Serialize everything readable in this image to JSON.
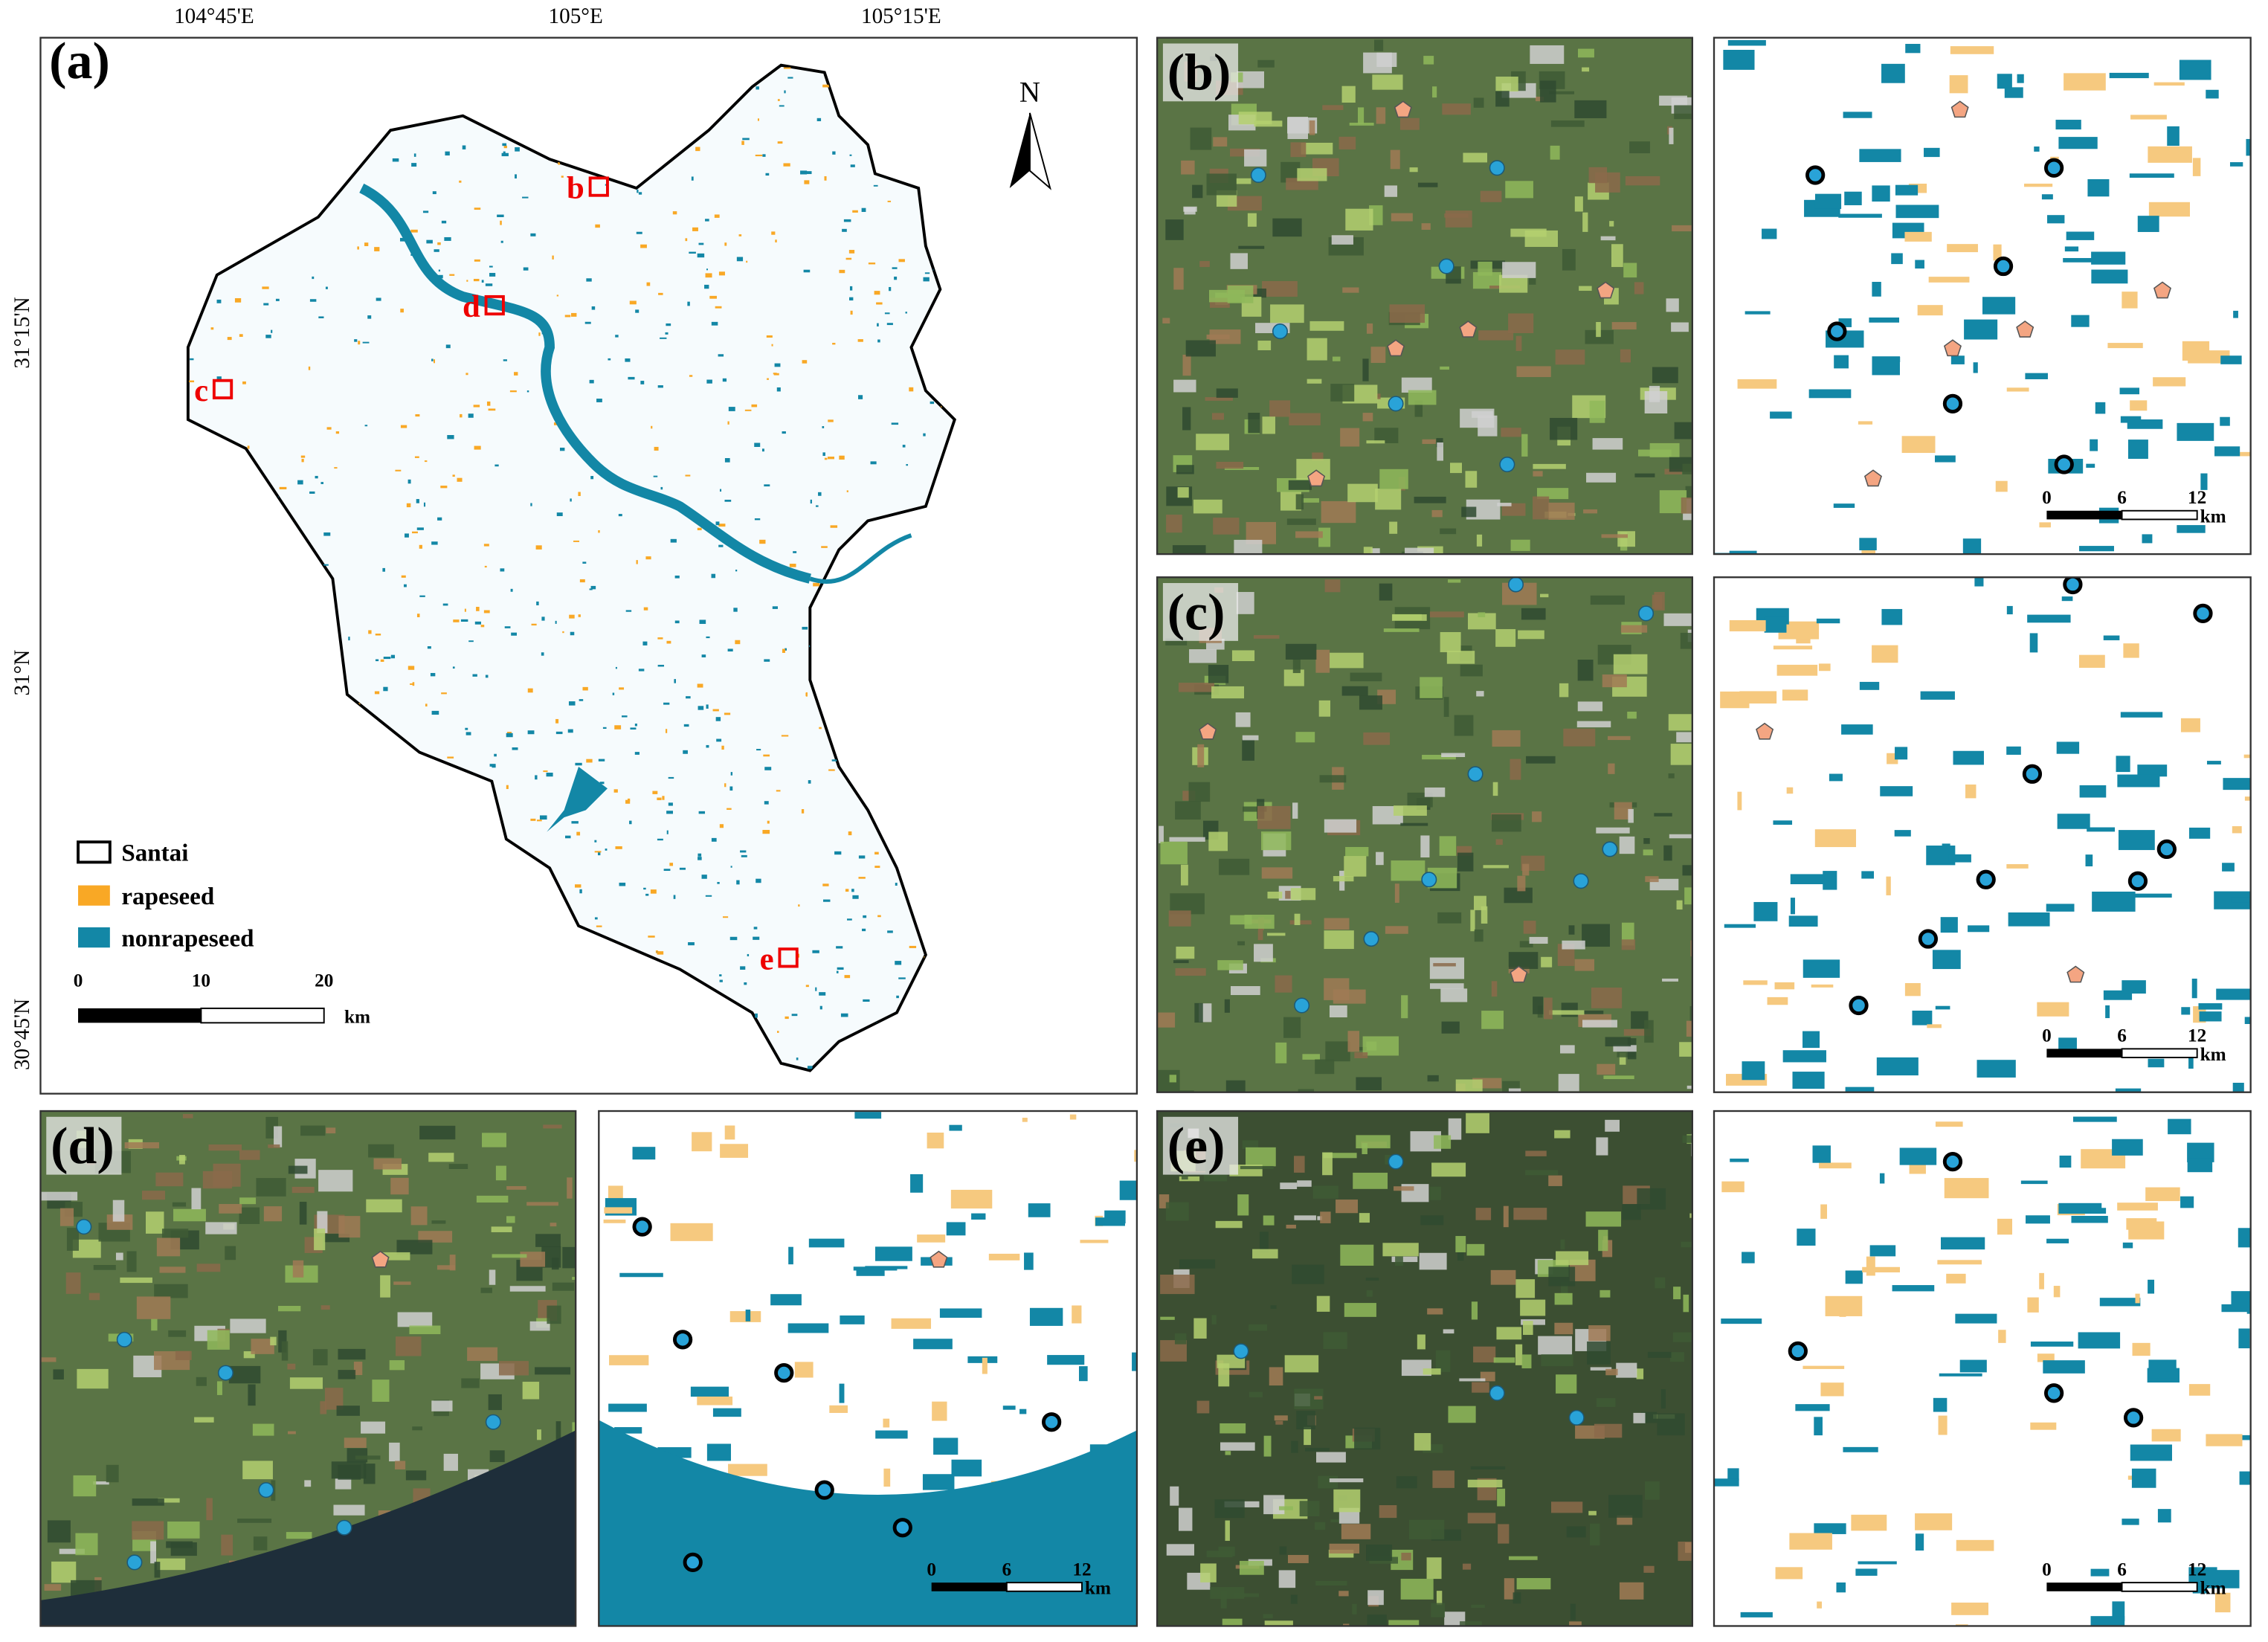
{
  "panel_a": {
    "label": "(a)",
    "lon_labels": [
      "104°45'E",
      "105°E",
      "105°15'E"
    ],
    "lat_labels": [
      "31°15'N",
      "31°N",
      "30°45'N"
    ],
    "north": "N",
    "legend": [
      "Santai",
      "rapeseed",
      "nonrapeseed"
    ],
    "scale_bar": {
      "ticks": [
        0,
        10,
        20
      ],
      "unit": "km"
    },
    "site_labels": [
      "b",
      "c",
      "d",
      "e"
    ]
  },
  "panels": [
    {
      "label": "(b)",
      "scale_bar": {
        "ticks": [
          0,
          6,
          12
        ],
        "unit": "km"
      }
    },
    {
      "label": "(c)",
      "scale_bar": {
        "ticks": [
          0,
          6,
          12
        ],
        "unit": "km"
      }
    },
    {
      "label": "(d)",
      "scale_bar": {
        "ticks": [
          0,
          6,
          12
        ],
        "unit": "km"
      }
    },
    {
      "label": "(e)",
      "scale_bar": {
        "ticks": [
          0,
          6,
          12
        ],
        "unit": "km"
      }
    }
  ]
}
